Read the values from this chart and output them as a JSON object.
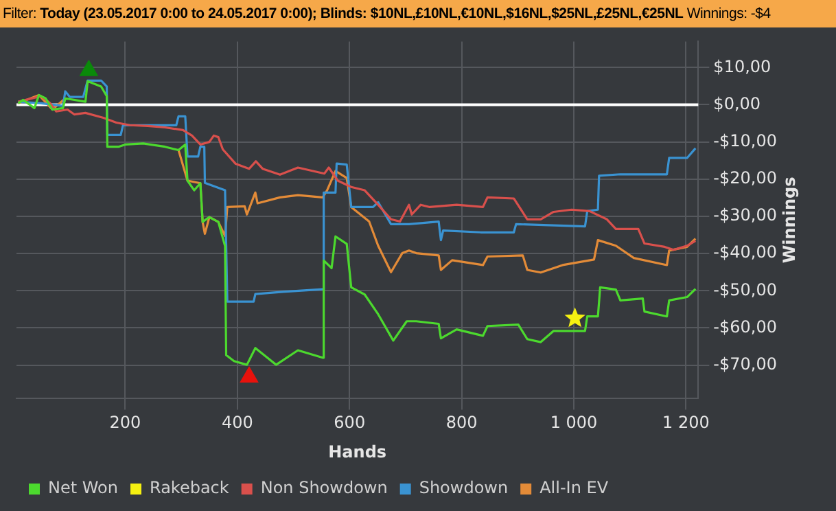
{
  "chart_data": {
    "type": "line",
    "title": "Today (23.05.2017 0:00 to 24.05.2017 0:00); Blinds: $10NL,£10NL,€10NL,$16NL,$25NL,£25NL,€25NL",
    "annotations": [
      "Filter:",
      "Winnings: -$4"
    ],
    "xlabel": "Hands",
    "ylabel": "Winnings",
    "xlim": [
      6,
      1222
    ],
    "ylim": [
      -79,
      17
    ],
    "xticks": [
      200,
      400,
      600,
      800,
      {
        "value": 1000,
        "label": "1 000"
      },
      {
        "value": 1200,
        "label": "1 200"
      }
    ],
    "yticks": [
      {
        "value": 10,
        "label": "$10,00"
      },
      {
        "value": 0,
        "label": "$0,00"
      },
      {
        "value": -10,
        "label": "-$10,00"
      },
      {
        "value": -20,
        "label": "-$20,00"
      },
      {
        "value": -30,
        "label": "-$30,00"
      },
      {
        "value": -40,
        "label": "-$40,00"
      },
      {
        "value": -50,
        "label": "-$50,00"
      },
      {
        "value": -60,
        "label": "-$60,00"
      },
      {
        "value": -70,
        "label": "-$70,00"
      }
    ],
    "grid": true,
    "legend": "bottom",
    "marker": "none",
    "line_style": "solid",
    "ref_lines": [
      {
        "axis": "y",
        "value": 0,
        "color": "#ffffff"
      }
    ],
    "series": [
      {
        "name": "Net Won",
        "color": "#4cd92e",
        "x": [
          9,
          18,
          38,
          46,
          58,
          70,
          89,
          93,
          129,
          133,
          157,
          167,
          168,
          188,
          200,
          232,
          271,
          295,
          307,
          311,
          323,
          334,
          338,
          350,
          366,
          378,
          380,
          394,
          417,
          432,
          469,
          508,
          552,
          554,
          568,
          575,
          595,
          603,
          627,
          651,
          678,
          702,
          719,
          759,
          763,
          791,
          838,
          846,
          901,
          917,
          941,
          964,
          1020,
          1024,
          1043,
          1047,
          1075,
          1083,
          1123,
          1126,
          1166,
          1170,
          1202,
          1217
        ],
        "values": [
          0.4,
          1.3,
          -0.9,
          2.6,
          1.7,
          -1.3,
          -0.9,
          1.7,
          0.8,
          6.3,
          4.9,
          2.3,
          -11.3,
          -11.3,
          -10.7,
          -10.4,
          -11.3,
          -12.2,
          -10.7,
          -20.4,
          -23,
          -21.1,
          -31.5,
          -30.2,
          -31.5,
          -38,
          -67.3,
          -68.9,
          -69.9,
          -65.4,
          -69.9,
          -66,
          -68,
          -41.9,
          -43.9,
          -35.4,
          -37.4,
          -49.1,
          -51,
          -56.3,
          -63.4,
          -58.2,
          -58.2,
          -58.9,
          -62.8,
          -60.4,
          -62.1,
          -59.5,
          -59.1,
          -63,
          -63.8,
          -60.8,
          -60.8,
          -56.9,
          -56.9,
          -49.1,
          -49.7,
          -52.6,
          -52.1,
          -55.6,
          -56.9,
          -52.6,
          -51.7,
          -49.5
        ]
      },
      {
        "name": "Rakeback",
        "type": "scatter",
        "marker": "star",
        "color": "#f5f011",
        "x": [
          1002
        ],
        "values": [
          -57.4
        ]
      },
      {
        "name": "Non Showdown",
        "color": "#d9504c",
        "x": [
          9,
          50,
          66,
          77,
          97,
          109,
          129,
          161,
          184,
          208,
          240,
          271,
          303,
          319,
          334,
          350,
          358,
          366,
          374,
          397,
          421,
          433,
          445,
          476,
          508,
          555,
          563,
          579,
          603,
          627,
          651,
          674,
          690,
          706,
          711,
          727,
          743,
          791,
          838,
          846,
          893,
          917,
          941,
          964,
          996,
          1028,
          1059,
          1075,
          1115,
          1126,
          1162,
          1178,
          1202,
          1217
        ],
        "values": [
          0.8,
          2.3,
          0.4,
          -1.8,
          -1.3,
          -2.6,
          -2.2,
          -3.5,
          -4.8,
          -5.5,
          -5.7,
          -6.1,
          -6.8,
          -8.3,
          -10.7,
          -10,
          -8.3,
          -8.7,
          -12,
          -15.9,
          -17.2,
          -15.2,
          -17.2,
          -18.8,
          -16.9,
          -18.5,
          -16.9,
          -20.4,
          -22.1,
          -23,
          -26.9,
          -30.8,
          -31.4,
          -26.9,
          -29.5,
          -26.9,
          -27.5,
          -26.9,
          -27.5,
          -24.9,
          -25.2,
          -30.8,
          -30.8,
          -28.8,
          -28.2,
          -28.6,
          -30.8,
          -33.4,
          -33.4,
          -37.3,
          -38.2,
          -39,
          -37.9,
          -36.6
        ]
      },
      {
        "name": "Showdown",
        "color": "#3a93d2",
        "x": [
          9,
          50,
          89,
          93,
          101,
          125,
          133,
          157,
          167,
          168,
          192,
          196,
          291,
          295,
          307,
          311,
          330,
          334,
          341,
          342,
          378,
          382,
          429,
          432,
          481,
          552,
          554,
          575,
          577,
          595,
          603,
          642,
          651,
          674,
          706,
          759,
          763,
          767,
          834,
          893,
          897,
          1020,
          1024,
          1043,
          1045,
          1083,
          1166,
          1170,
          1202,
          1217
        ],
        "values": [
          0.8,
          0.4,
          -0.3,
          3.6,
          2.1,
          2.1,
          6.5,
          6.5,
          4.9,
          -8.1,
          -8.1,
          -5.5,
          -5.5,
          -3.1,
          -3.1,
          -13.9,
          -13.9,
          -11.3,
          -11.3,
          -21,
          -23,
          -52.9,
          -52.9,
          -50.9,
          -50.3,
          -49.6,
          -23.6,
          -23.6,
          -15.8,
          -16.1,
          -27.5,
          -27.5,
          -26.2,
          -32.1,
          -32.1,
          -31.4,
          -36.4,
          -33.8,
          -34.3,
          -34.3,
          -32.1,
          -32.7,
          -28.6,
          -28.2,
          -19.1,
          -18.7,
          -18.7,
          -14.3,
          -14.3,
          -11.7
        ]
      },
      {
        "name": "All-In EV",
        "color": "#e38b38",
        "x": [
          9,
          46,
          70,
          93,
          129,
          133,
          157,
          167,
          168,
          295,
          311,
          334,
          338,
          342,
          350,
          366,
          378,
          382,
          413,
          417,
          432,
          436,
          476,
          508,
          552,
          560,
          575,
          595,
          603,
          635,
          651,
          674,
          694,
          706,
          719,
          759,
          763,
          783,
          838,
          846,
          909,
          917,
          941,
          980,
          1036,
          1043,
          1075,
          1107,
          1166,
          1170,
          1202,
          1217
        ],
        "values": [
          0.4,
          2.6,
          -1.3,
          1.7,
          null,
          null,
          null,
          null,
          null,
          -12.2,
          -20.4,
          -21.1,
          -31.5,
          -34.7,
          -30.2,
          -31.5,
          -35.3,
          -27.5,
          -27.3,
          -29.5,
          -23.6,
          -26.5,
          -24.9,
          -24.3,
          -24.9,
          -23,
          -17.8,
          -19.7,
          -27.5,
          -31.4,
          -37.9,
          -45,
          -39.9,
          -39.2,
          -39.9,
          -40.5,
          -44.4,
          -41.8,
          -43.1,
          -40.8,
          -40.5,
          -44.4,
          -45.1,
          -43.1,
          -41.6,
          -36.4,
          -37.9,
          -41.2,
          -43.1,
          -39.2,
          -38.2,
          -36
        ]
      },
      {
        "type": "scatter",
        "marker": "triangle",
        "color": "#0a8a0a",
        "x": [
          135
        ],
        "values": [
          9.2
        ]
      },
      {
        "type": "scatter",
        "marker": "triangle",
        "color": "#e8120c",
        "x": [
          421
        ],
        "values": [
          -73.2
        ]
      }
    ]
  }
}
